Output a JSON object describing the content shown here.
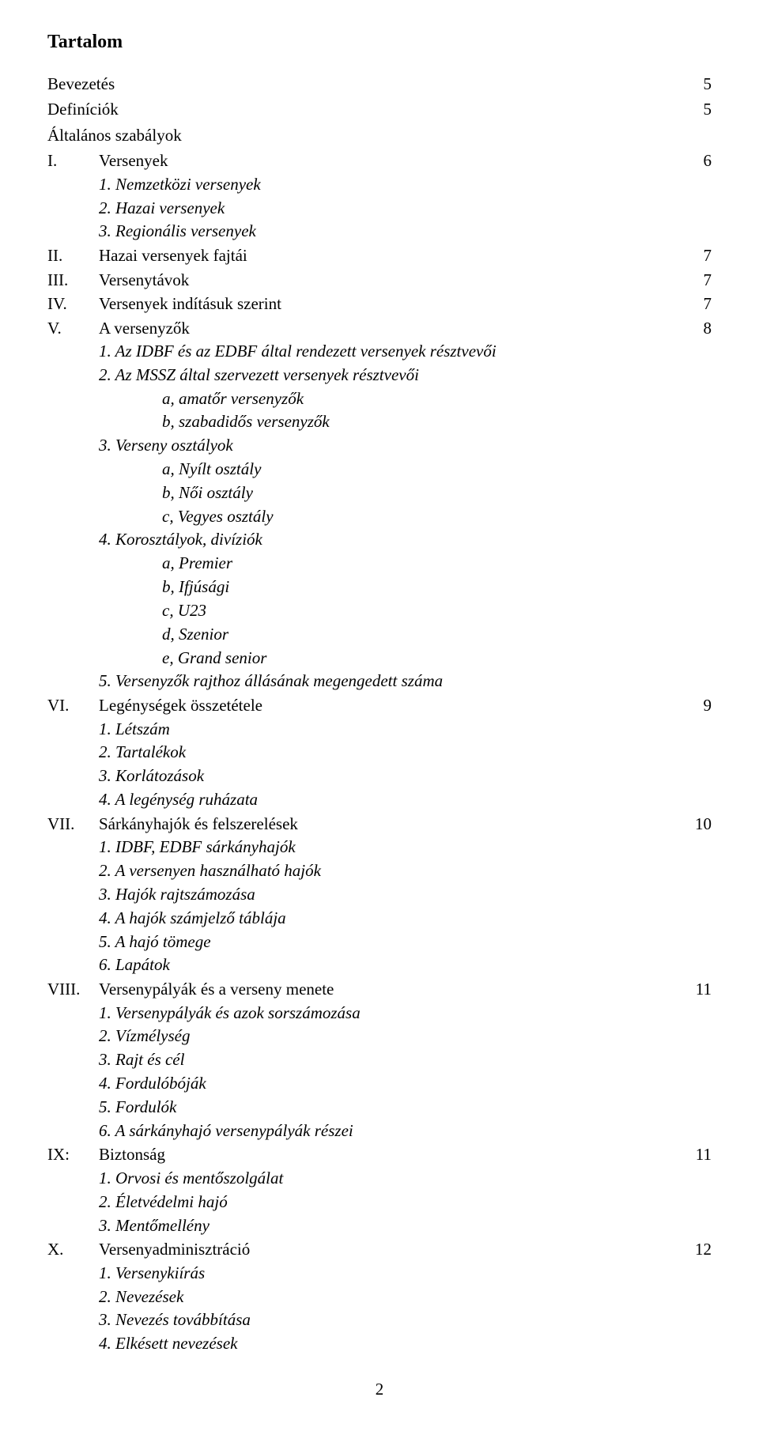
{
  "title": "Tartalom",
  "top": [
    {
      "label": "Bevezetés",
      "page": "5"
    },
    {
      "label": "Definíciók",
      "page": "5"
    },
    {
      "label": "Általános szabályok",
      "page": ""
    }
  ],
  "sections": [
    {
      "roman": "I.",
      "title": "Versenyek",
      "page": "6",
      "subs": [
        {
          "t": "1. Nemzetközi versenyek"
        },
        {
          "t": "2. Hazai versenyek"
        },
        {
          "t": "3. Regionális versenyek"
        }
      ]
    },
    {
      "roman": "II.",
      "title": "Hazai versenyek fajtái",
      "page": "7",
      "subs": []
    },
    {
      "roman": "III.",
      "title": "Versenytávok",
      "page": "7",
      "subs": []
    },
    {
      "roman": "IV.",
      "title": "Versenyek indításuk szerint",
      "page": "7",
      "subs": []
    },
    {
      "roman": "V.",
      "title": "A versenyzők",
      "page": "8",
      "subs": [
        {
          "t": "1. Az IDBF és az EDBF által rendezett versenyek résztvevői"
        },
        {
          "t": "2. Az MSSZ által szervezett versenyek résztvevői",
          "subsubs": [
            {
              "t": "a, amatőr versenyzők"
            },
            {
              "t": "b, szabadidős versenyzők"
            }
          ]
        },
        {
          "t": "3. Verseny osztályok",
          "subsubs": [
            {
              "t": "a, Nyílt osztály"
            },
            {
              "t": "b, Női osztály"
            },
            {
              "t": "c, Vegyes osztály"
            }
          ]
        },
        {
          "t": "4. Korosztályok, divíziók",
          "subsubs": [
            {
              "t": "a, Premier"
            },
            {
              "t": "b, Ifjúsági"
            },
            {
              "t": "c, U23"
            },
            {
              "t": "d, Szenior"
            },
            {
              "t": "e, Grand senior"
            }
          ]
        },
        {
          "t": "5. Versenyzők rajthoz állásának megengedett száma"
        }
      ]
    },
    {
      "roman": "VI.",
      "title": "Legénységek összetétele",
      "page": "9",
      "subs": [
        {
          "t": "1. Létszám"
        },
        {
          "t": "2. Tartalékok"
        },
        {
          "t": "3. Korlátozások"
        },
        {
          "t": "4. A legénység ruházata"
        }
      ]
    },
    {
      "roman": "VII.",
      "title": "Sárkányhajók és felszerelések",
      "page": "10",
      "subs": [
        {
          "t": "1. IDBF, EDBF sárkányhajók"
        },
        {
          "t": "2. A versenyen használható hajók"
        },
        {
          "t": "3. Hajók rajtszámozása"
        },
        {
          "t": "4. A hajók számjelző táblája"
        },
        {
          "t": "5. A hajó tömege"
        },
        {
          "t": "6. Lapátok"
        }
      ]
    },
    {
      "roman": "VIII.",
      "title": "Versenypályák és a verseny menete",
      "page": "11",
      "subs": [
        {
          "t": "1. Versenypályák és azok sorszámozása"
        },
        {
          "t": "2. Vízmélység"
        },
        {
          "t": "3. Rajt és cél"
        },
        {
          "t": "4. Fordulóbóják"
        },
        {
          "t": "5. Fordulók"
        },
        {
          "t": "6.  A sárkányhajó versenypályák részei"
        }
      ]
    },
    {
      "roman": "IX:",
      "title": "Biztonság",
      "page": "11",
      "subs": [
        {
          "t": "1. Orvosi és mentőszolgálat"
        },
        {
          "t": "2. Életvédelmi hajó"
        },
        {
          "t": "3. Mentőmellény"
        }
      ]
    },
    {
      "roman": "X.",
      "title": "Versenyadminisztráció",
      "page": "12",
      "subs": [
        {
          "t": "1. Versenykiírás"
        },
        {
          "t": "2. Nevezések"
        },
        {
          "t": "3. Nevezés továbbítása"
        },
        {
          "t": "4. Elkésett nevezések"
        }
      ]
    }
  ],
  "page_number": "2"
}
